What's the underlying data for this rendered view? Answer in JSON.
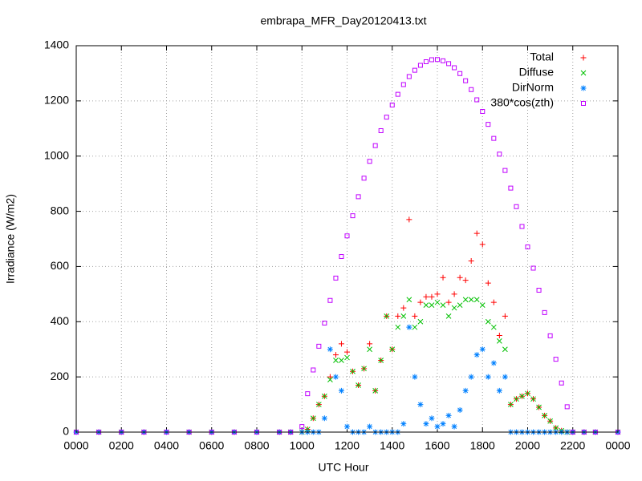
{
  "chart_data": {
    "type": "scatter",
    "title": "embrapa_MFR_Day20120413.txt",
    "x_label": "UTC Hour",
    "y_label": "Irradiance (W/m2)",
    "xlim": [
      0,
      24
    ],
    "ylim": [
      0,
      1400
    ],
    "xticks": [
      {
        "value": 0,
        "label": "0000"
      },
      {
        "value": 2,
        "label": "0200"
      },
      {
        "value": 4,
        "label": "0400"
      },
      {
        "value": 6,
        "label": "0600"
      },
      {
        "value": 8,
        "label": "0800"
      },
      {
        "value": 10,
        "label": "1000"
      },
      {
        "value": 12,
        "label": "1200"
      },
      {
        "value": 14,
        "label": "1400"
      },
      {
        "value": 16,
        "label": "1600"
      },
      {
        "value": 18,
        "label": "1800"
      },
      {
        "value": 20,
        "label": "2000"
      },
      {
        "value": 22,
        "label": "2200"
      },
      {
        "value": 24,
        "label": "0000"
      }
    ],
    "yticks": [
      0,
      200,
      400,
      600,
      800,
      1000,
      1200,
      1400
    ],
    "grid": true,
    "legend": "top right",
    "x": [
      0,
      1,
      2,
      3,
      4,
      5,
      6,
      7,
      8,
      9,
      9.5,
      10,
      10.25,
      10.5,
      10.75,
      11,
      11.25,
      11.5,
      11.75,
      12,
      12.25,
      12.5,
      12.75,
      13,
      13.25,
      13.5,
      13.75,
      14,
      14.25,
      14.5,
      14.75,
      15,
      15.25,
      15.5,
      15.75,
      16,
      16.25,
      16.5,
      16.75,
      17,
      17.25,
      17.5,
      17.75,
      18,
      18.25,
      18.5,
      18.75,
      19,
      19.25,
      19.5,
      19.75,
      20,
      20.25,
      20.5,
      20.75,
      21,
      21.25,
      21.5,
      21.75,
      22,
      22.5,
      23,
      24
    ],
    "series": [
      {
        "name": "Total",
        "color": "#ff0000",
        "marker": "plus",
        "values": [
          0,
          0,
          0,
          0,
          0,
          0,
          0,
          0,
          0,
          0,
          0,
          0,
          10,
          50,
          100,
          130,
          200,
          280,
          320,
          290,
          220,
          170,
          230,
          320,
          150,
          260,
          420,
          300,
          420,
          450,
          770,
          420,
          470,
          490,
          490,
          500,
          560,
          470,
          500,
          560,
          550,
          620,
          720,
          680,
          540,
          470,
          350,
          420,
          100,
          120,
          130,
          140,
          120,
          90,
          60,
          40,
          15,
          5,
          0,
          0,
          0,
          0,
          0
        ]
      },
      {
        "name": "Diffuse",
        "color": "#00c000",
        "marker": "cross",
        "values": [
          0,
          0,
          0,
          0,
          0,
          0,
          0,
          0,
          0,
          0,
          0,
          0,
          10,
          50,
          100,
          130,
          190,
          260,
          260,
          270,
          220,
          170,
          230,
          300,
          150,
          260,
          420,
          300,
          380,
          420,
          480,
          380,
          400,
          460,
          460,
          470,
          460,
          420,
          450,
          460,
          480,
          480,
          480,
          460,
          400,
          380,
          330,
          300,
          100,
          120,
          130,
          140,
          120,
          90,
          60,
          40,
          15,
          5,
          0,
          0,
          0,
          0,
          0
        ]
      },
      {
        "name": "DirNorm",
        "color": "#0080ff",
        "marker": "star",
        "values": [
          0,
          0,
          0,
          0,
          0,
          0,
          0,
          0,
          0,
          0,
          0,
          0,
          0,
          0,
          0,
          50,
          300,
          200,
          150,
          20,
          0,
          0,
          0,
          20,
          0,
          0,
          0,
          0,
          0,
          30,
          380,
          200,
          100,
          30,
          50,
          20,
          30,
          60,
          20,
          80,
          150,
          200,
          280,
          300,
          200,
          250,
          150,
          200,
          0,
          0,
          0,
          0,
          0,
          0,
          0,
          0,
          0,
          0,
          0,
          0,
          0,
          0,
          0
        ]
      },
      {
        "name": "380*cos(zth)",
        "color": "#c000ff",
        "marker": "square",
        "values": [
          0,
          0,
          0,
          0,
          0,
          0,
          0,
          0,
          0,
          0,
          0,
          20,
          139,
          225,
          311,
          395,
          477,
          558,
          636,
          711,
          784,
          853,
          920,
          981,
          1038,
          1092,
          1141,
          1185,
          1224,
          1259,
          1288,
          1311,
          1329,
          1342,
          1349,
          1350,
          1345,
          1335,
          1320,
          1299,
          1273,
          1241,
          1204,
          1162,
          1115,
          1064,
          1007,
          948,
          884,
          817,
          745,
          671,
          594,
          514,
          433,
          349,
          264,
          178,
          92,
          0,
          0,
          0,
          0
        ]
      }
    ]
  }
}
